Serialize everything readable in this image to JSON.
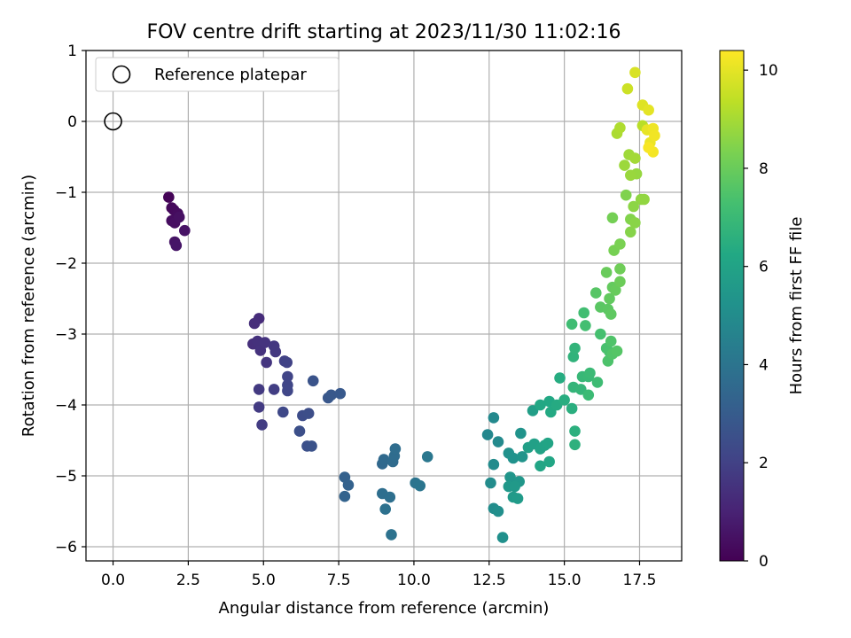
{
  "chart_data": {
    "type": "scatter",
    "title": "FOV centre drift starting at 2023/11/30 11:02:16",
    "xlabel": "Angular distance from reference (arcmin)",
    "ylabel": "Rotation from reference (arcmin)",
    "xlim": [
      -0.9,
      18.9
    ],
    "ylim": [
      -6.2,
      1.0
    ],
    "xticks": [
      0.0,
      2.5,
      5.0,
      7.5,
      10.0,
      12.5,
      15.0,
      17.5
    ],
    "xtick_labels": [
      "0.0",
      "2.5",
      "5.0",
      "7.5",
      "10.0",
      "12.5",
      "15.0",
      "17.5"
    ],
    "yticks": [
      1,
      0,
      -1,
      -2,
      -3,
      -4,
      -5,
      -6
    ],
    "ytick_labels": [
      "1",
      "0",
      "−1",
      "−2",
      "−3",
      "−4",
      "−5",
      "−6"
    ],
    "grid": true,
    "legend": {
      "placement": "upper-left",
      "label": "Reference platepar"
    },
    "reference_point": {
      "x": 0.0,
      "y": 0.0
    },
    "colorbar": {
      "label": "Hours from first FF file",
      "colormap": "viridis",
      "range": [
        0,
        10.4
      ],
      "ticks": [
        0,
        2,
        4,
        6,
        8,
        10
      ],
      "tick_labels": [
        "0",
        "2",
        "4",
        "6",
        "8",
        "10"
      ]
    },
    "points": [
      {
        "x": 1.85,
        "y": -1.07,
        "h": 0.1
      },
      {
        "x": 1.95,
        "y": -1.22,
        "h": 0.2
      },
      {
        "x": 2.02,
        "y": -1.25,
        "h": 0.25
      },
      {
        "x": 2.15,
        "y": -1.3,
        "h": 0.3
      },
      {
        "x": 1.95,
        "y": -1.4,
        "h": 0.35
      },
      {
        "x": 2.05,
        "y": -1.43,
        "h": 0.4
      },
      {
        "x": 2.2,
        "y": -1.35,
        "h": 0.45
      },
      {
        "x": 2.38,
        "y": -1.54,
        "h": 0.5
      },
      {
        "x": 2.05,
        "y": -1.7,
        "h": 0.55
      },
      {
        "x": 2.1,
        "y": -1.75,
        "h": 0.6
      },
      {
        "x": 4.85,
        "y": -2.78,
        "h": 1.3
      },
      {
        "x": 4.7,
        "y": -2.85,
        "h": 1.35
      },
      {
        "x": 4.65,
        "y": -3.14,
        "h": 1.4
      },
      {
        "x": 4.8,
        "y": -3.1,
        "h": 1.45
      },
      {
        "x": 4.9,
        "y": -3.23,
        "h": 1.5
      },
      {
        "x": 5.05,
        "y": -3.12,
        "h": 1.55
      },
      {
        "x": 5.1,
        "y": -3.4,
        "h": 1.6
      },
      {
        "x": 5.35,
        "y": -3.17,
        "h": 1.65
      },
      {
        "x": 5.4,
        "y": -3.25,
        "h": 1.7
      },
      {
        "x": 4.85,
        "y": -3.78,
        "h": 1.75
      },
      {
        "x": 4.85,
        "y": -4.03,
        "h": 1.8
      },
      {
        "x": 4.95,
        "y": -4.28,
        "h": 1.85
      },
      {
        "x": 5.35,
        "y": -3.78,
        "h": 1.9
      },
      {
        "x": 5.7,
        "y": -3.38,
        "h": 2.0
      },
      {
        "x": 5.78,
        "y": -3.4,
        "h": 2.05
      },
      {
        "x": 5.8,
        "y": -3.6,
        "h": 2.1
      },
      {
        "x": 5.8,
        "y": -3.72,
        "h": 2.15
      },
      {
        "x": 5.8,
        "y": -3.8,
        "h": 2.2
      },
      {
        "x": 5.65,
        "y": -4.1,
        "h": 2.25
      },
      {
        "x": 6.3,
        "y": -4.15,
        "h": 2.4
      },
      {
        "x": 6.5,
        "y": -4.12,
        "h": 2.45
      },
      {
        "x": 6.2,
        "y": -4.37,
        "h": 2.5
      },
      {
        "x": 6.45,
        "y": -4.58,
        "h": 2.55
      },
      {
        "x": 6.6,
        "y": -4.58,
        "h": 2.6
      },
      {
        "x": 6.65,
        "y": -3.66,
        "h": 2.65
      },
      {
        "x": 7.15,
        "y": -3.9,
        "h": 2.8
      },
      {
        "x": 7.25,
        "y": -3.86,
        "h": 2.85
      },
      {
        "x": 7.55,
        "y": -3.84,
        "h": 2.9
      },
      {
        "x": 7.7,
        "y": -5.02,
        "h": 3.2
      },
      {
        "x": 7.82,
        "y": -5.13,
        "h": 3.25
      },
      {
        "x": 7.7,
        "y": -5.29,
        "h": 3.3
      },
      {
        "x": 8.95,
        "y": -4.83,
        "h": 3.5
      },
      {
        "x": 9.0,
        "y": -4.77,
        "h": 3.55
      },
      {
        "x": 9.3,
        "y": -4.8,
        "h": 3.6
      },
      {
        "x": 9.35,
        "y": -4.72,
        "h": 3.65
      },
      {
        "x": 9.38,
        "y": -4.62,
        "h": 3.7
      },
      {
        "x": 8.95,
        "y": -5.25,
        "h": 3.75
      },
      {
        "x": 9.2,
        "y": -5.3,
        "h": 3.8
      },
      {
        "x": 9.05,
        "y": -5.47,
        "h": 3.85
      },
      {
        "x": 9.25,
        "y": -5.83,
        "h": 3.9
      },
      {
        "x": 10.05,
        "y": -5.1,
        "h": 4.0
      },
      {
        "x": 10.2,
        "y": -5.14,
        "h": 4.05
      },
      {
        "x": 10.45,
        "y": -4.73,
        "h": 4.1
      },
      {
        "x": 12.45,
        "y": -4.42,
        "h": 4.8
      },
      {
        "x": 12.65,
        "y": -4.18,
        "h": 4.85
      },
      {
        "x": 12.8,
        "y": -4.52,
        "h": 4.9
      },
      {
        "x": 12.65,
        "y": -4.84,
        "h": 4.95
      },
      {
        "x": 12.55,
        "y": -5.1,
        "h": 5.0
      },
      {
        "x": 12.65,
        "y": -5.46,
        "h": 5.05
      },
      {
        "x": 12.8,
        "y": -5.5,
        "h": 5.1
      },
      {
        "x": 12.95,
        "y": -5.87,
        "h": 5.15
      },
      {
        "x": 13.15,
        "y": -4.68,
        "h": 5.2
      },
      {
        "x": 13.3,
        "y": -4.75,
        "h": 5.25
      },
      {
        "x": 13.55,
        "y": -4.4,
        "h": 5.3
      },
      {
        "x": 13.6,
        "y": -4.73,
        "h": 5.35
      },
      {
        "x": 13.2,
        "y": -5.02,
        "h": 5.4
      },
      {
        "x": 13.5,
        "y": -5.08,
        "h": 5.45
      },
      {
        "x": 13.15,
        "y": -5.15,
        "h": 5.5
      },
      {
        "x": 13.35,
        "y": -5.15,
        "h": 5.55
      },
      {
        "x": 13.3,
        "y": -5.3,
        "h": 5.6
      },
      {
        "x": 13.45,
        "y": -5.32,
        "h": 5.65
      },
      {
        "x": 13.95,
        "y": -4.08,
        "h": 5.8
      },
      {
        "x": 13.8,
        "y": -4.6,
        "h": 5.85
      },
      {
        "x": 14.0,
        "y": -4.55,
        "h": 5.9
      },
      {
        "x": 14.2,
        "y": -4.62,
        "h": 5.95
      },
      {
        "x": 14.35,
        "y": -4.57,
        "h": 6.0
      },
      {
        "x": 14.45,
        "y": -4.54,
        "h": 6.05
      },
      {
        "x": 14.2,
        "y": -4.86,
        "h": 6.1
      },
      {
        "x": 14.5,
        "y": -4.8,
        "h": 6.15
      },
      {
        "x": 14.2,
        "y": -4.0,
        "h": 6.2
      },
      {
        "x": 14.5,
        "y": -3.95,
        "h": 6.25
      },
      {
        "x": 14.55,
        "y": -4.1,
        "h": 6.3
      },
      {
        "x": 14.75,
        "y": -4.0,
        "h": 6.35
      },
      {
        "x": 14.85,
        "y": -3.62,
        "h": 6.4
      },
      {
        "x": 15.0,
        "y": -3.93,
        "h": 6.45
      },
      {
        "x": 15.25,
        "y": -4.05,
        "h": 6.5
      },
      {
        "x": 15.35,
        "y": -4.37,
        "h": 6.55
      },
      {
        "x": 15.35,
        "y": -4.56,
        "h": 6.6
      },
      {
        "x": 15.3,
        "y": -3.32,
        "h": 6.7
      },
      {
        "x": 15.35,
        "y": -3.2,
        "h": 6.75
      },
      {
        "x": 15.3,
        "y": -3.75,
        "h": 6.8
      },
      {
        "x": 15.55,
        "y": -3.78,
        "h": 6.85
      },
      {
        "x": 15.6,
        "y": -3.6,
        "h": 6.9
      },
      {
        "x": 15.8,
        "y": -3.6,
        "h": 6.95
      },
      {
        "x": 15.85,
        "y": -3.55,
        "h": 7.0
      },
      {
        "x": 15.8,
        "y": -3.86,
        "h": 7.05
      },
      {
        "x": 16.1,
        "y": -3.68,
        "h": 7.1
      },
      {
        "x": 15.25,
        "y": -2.86,
        "h": 7.15
      },
      {
        "x": 15.65,
        "y": -2.7,
        "h": 7.2
      },
      {
        "x": 15.7,
        "y": -2.88,
        "h": 7.25
      },
      {
        "x": 16.2,
        "y": -3.0,
        "h": 7.3
      },
      {
        "x": 16.4,
        "y": -3.2,
        "h": 7.35
      },
      {
        "x": 16.5,
        "y": -3.25,
        "h": 7.4
      },
      {
        "x": 16.45,
        "y": -3.38,
        "h": 7.45
      },
      {
        "x": 16.55,
        "y": -3.1,
        "h": 7.5
      },
      {
        "x": 16.6,
        "y": -3.28,
        "h": 7.55
      },
      {
        "x": 16.75,
        "y": -3.24,
        "h": 7.6
      },
      {
        "x": 16.05,
        "y": -2.42,
        "h": 7.65
      },
      {
        "x": 16.2,
        "y": -2.62,
        "h": 7.7
      },
      {
        "x": 16.45,
        "y": -2.65,
        "h": 7.75
      },
      {
        "x": 16.55,
        "y": -2.72,
        "h": 7.8
      },
      {
        "x": 16.5,
        "y": -2.5,
        "h": 7.85
      },
      {
        "x": 16.6,
        "y": -2.34,
        "h": 7.9
      },
      {
        "x": 16.7,
        "y": -2.38,
        "h": 7.95
      },
      {
        "x": 16.4,
        "y": -2.13,
        "h": 8.0
      },
      {
        "x": 16.85,
        "y": -2.26,
        "h": 8.05
      },
      {
        "x": 16.85,
        "y": -2.08,
        "h": 8.1
      },
      {
        "x": 16.6,
        "y": -1.36,
        "h": 8.2
      },
      {
        "x": 16.65,
        "y": -1.82,
        "h": 8.25
      },
      {
        "x": 16.85,
        "y": -1.73,
        "h": 8.3
      },
      {
        "x": 17.05,
        "y": -1.04,
        "h": 8.4
      },
      {
        "x": 17.2,
        "y": -1.38,
        "h": 8.45
      },
      {
        "x": 17.2,
        "y": -1.56,
        "h": 8.5
      },
      {
        "x": 17.35,
        "y": -1.43,
        "h": 8.55
      },
      {
        "x": 17.3,
        "y": -1.2,
        "h": 8.6
      },
      {
        "x": 17.55,
        "y": -1.1,
        "h": 8.65
      },
      {
        "x": 17.65,
        "y": -1.1,
        "h": 8.7
      },
      {
        "x": 17.4,
        "y": -0.74,
        "h": 8.75
      },
      {
        "x": 17.2,
        "y": -0.76,
        "h": 8.8
      },
      {
        "x": 17.0,
        "y": -0.62,
        "h": 8.85
      },
      {
        "x": 17.15,
        "y": -0.47,
        "h": 8.9
      },
      {
        "x": 17.35,
        "y": -0.52,
        "h": 8.95
      },
      {
        "x": 16.75,
        "y": -0.17,
        "h": 9.1
      },
      {
        "x": 16.85,
        "y": -0.09,
        "h": 9.15
      },
      {
        "x": 17.6,
        "y": -0.06,
        "h": 9.3
      },
      {
        "x": 17.1,
        "y": 0.46,
        "h": 9.6
      },
      {
        "x": 17.35,
        "y": 0.69,
        "h": 9.8
      },
      {
        "x": 17.6,
        "y": 0.23,
        "h": 9.9
      },
      {
        "x": 17.8,
        "y": 0.16,
        "h": 10.0
      },
      {
        "x": 17.75,
        "y": -0.12,
        "h": 10.05
      },
      {
        "x": 17.85,
        "y": -0.3,
        "h": 10.1
      },
      {
        "x": 17.95,
        "y": -0.1,
        "h": 10.15
      },
      {
        "x": 18.0,
        "y": -0.2,
        "h": 10.2
      },
      {
        "x": 17.95,
        "y": -0.43,
        "h": 10.25
      },
      {
        "x": 17.8,
        "y": -0.37,
        "h": 10.3
      }
    ]
  }
}
